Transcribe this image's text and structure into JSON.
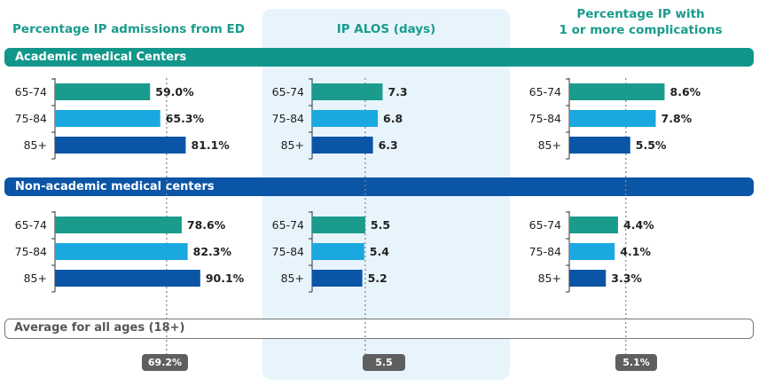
{
  "chart_data": {
    "type": "bar",
    "panels": [
      {
        "title": "Percentage IP admissions from ED",
        "unit": "%",
        "average": 69.2,
        "average_label": "69.2%",
        "xmax": 110
      },
      {
        "title": "IP ALOS (days)",
        "unit": "",
        "average": 5.5,
        "average_label": "5.5",
        "xmax": 12.4
      },
      {
        "title": "Percentage IP with\n1 or more complications",
        "unit": "%",
        "average": 5.1,
        "average_label": "5.1%",
        "xmax": 12.0
      }
    ],
    "categories": [
      "65-74",
      "75-84",
      "85+"
    ],
    "groups": [
      {
        "name": "Academic medical Centers",
        "values": [
          [
            59.0,
            65.3,
            81.1
          ],
          [
            7.3,
            6.8,
            6.3
          ],
          [
            8.6,
            7.8,
            5.5
          ]
        ],
        "labels": [
          [
            "59.0%",
            "65.3%",
            "81.1%"
          ],
          [
            "7.3",
            "6.8",
            "6.3"
          ],
          [
            "8.6%",
            "7.8%",
            "5.5%"
          ]
        ]
      },
      {
        "name": "Non-academic medical centers",
        "values": [
          [
            78.6,
            82.3,
            90.1
          ],
          [
            5.5,
            5.4,
            5.2
          ],
          [
            4.4,
            4.1,
            3.3
          ]
        ],
        "labels": [
          [
            "78.6%",
            "82.3%",
            "90.1%"
          ],
          [
            "5.5",
            "5.4",
            "5.2"
          ],
          [
            "4.4%",
            "4.1%",
            "3.3%"
          ]
        ]
      }
    ],
    "average_label": "Average for all ages (18+)",
    "colors": {
      "65-74": "#1a9b8c",
      "75-84": "#1aa8e0",
      "85+": "#0b55a6",
      "academic_band": "#10968a",
      "nonacademic_band": "#0b55a6",
      "highlight_panel": "#e8f4fc",
      "title": "#1a9b8c"
    }
  }
}
